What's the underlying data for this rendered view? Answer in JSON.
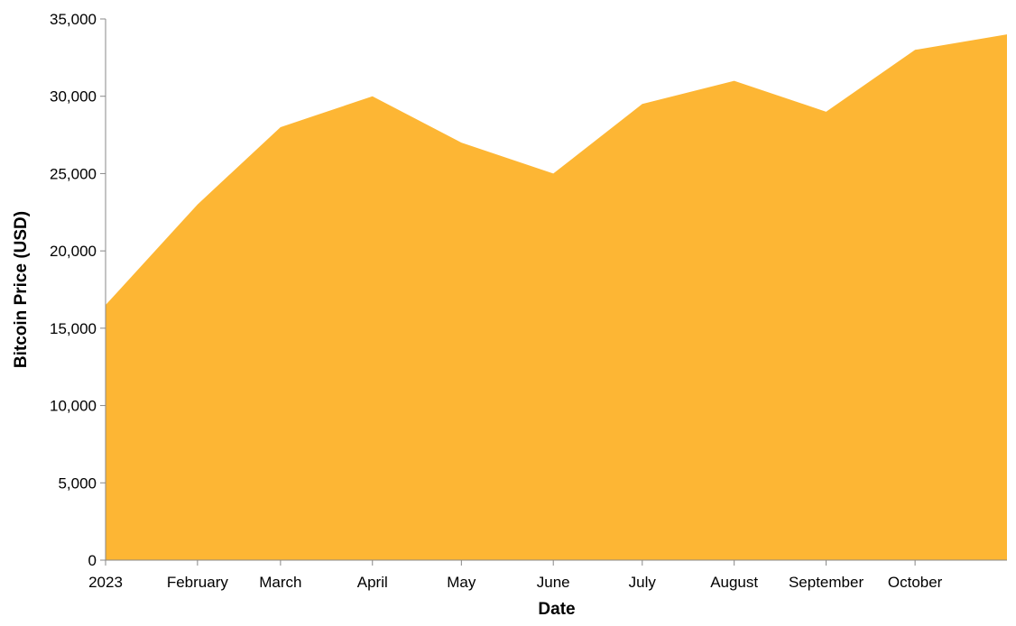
{
  "chart_data": {
    "type": "area",
    "xlabel": "Date",
    "ylabel": "Bitcoin Price (USD)",
    "ylim": [
      0,
      35000
    ],
    "y_ticks": [
      0,
      5000,
      10000,
      15000,
      20000,
      25000,
      30000,
      35000
    ],
    "y_tick_labels": [
      "0",
      "5,000",
      "10,000",
      "15,000",
      "20,000",
      "25,000",
      "30,000",
      "35,000"
    ],
    "x_domain": [
      "2023-01-01",
      "2023-11-01"
    ],
    "x_ticks": [
      "2023-01-01",
      "2023-02-01",
      "2023-03-01",
      "2023-04-01",
      "2023-05-01",
      "2023-06-01",
      "2023-07-01",
      "2023-08-01",
      "2023-09-01",
      "2023-10-01"
    ],
    "x_tick_labels": [
      "2023",
      "February",
      "March",
      "April",
      "May",
      "June",
      "July",
      "August",
      "September",
      "October"
    ],
    "x": [
      "2023-01-01",
      "2023-02-01",
      "2023-03-01",
      "2023-04-01",
      "2023-05-01",
      "2023-06-01",
      "2023-07-01",
      "2023-08-01",
      "2023-09-01",
      "2023-10-01",
      "2023-11-01"
    ],
    "values": [
      16500,
      23000,
      28000,
      30000,
      27000,
      25000,
      29500,
      31000,
      29000,
      33000,
      34000
    ],
    "color": "#fdb634",
    "grid": false,
    "legend": "none"
  }
}
